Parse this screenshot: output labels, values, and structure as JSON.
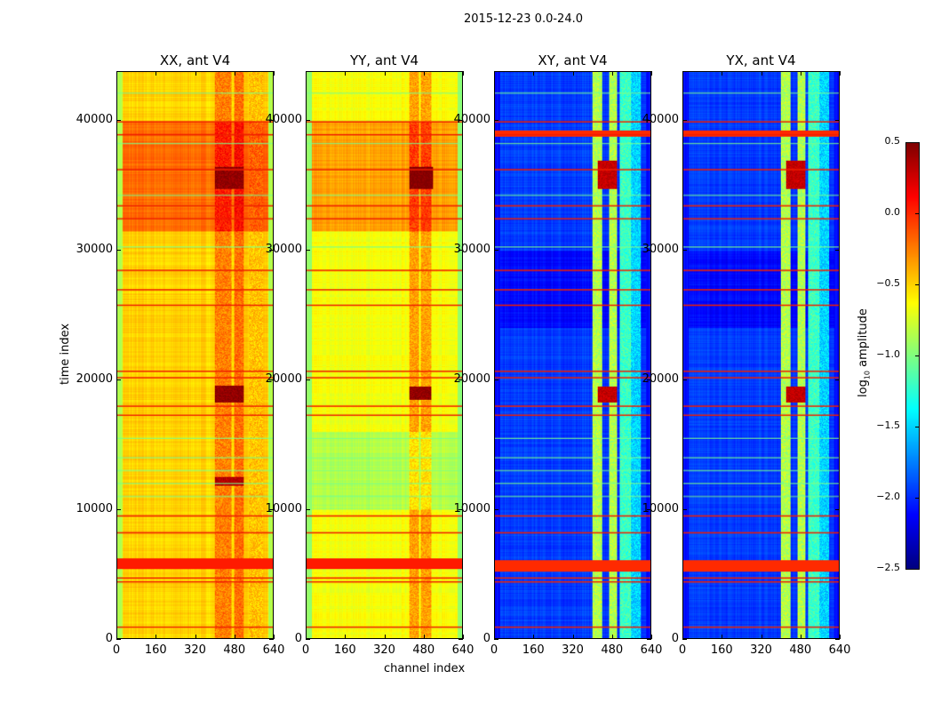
{
  "chart_data": {
    "type": "heatmap",
    "title": "2015-12-23 0.0-24.0",
    "xlabel": "channel index",
    "ylabel": "time index",
    "xlim": [
      0,
      640
    ],
    "ylim": [
      0,
      43800
    ],
    "xticks": [
      "0",
      "160",
      "320",
      "480",
      "640"
    ],
    "xtick_values": [
      0,
      160,
      320,
      480,
      640
    ],
    "yticks": [
      "0",
      "10000",
      "20000",
      "30000",
      "40000"
    ],
    "ytick_values": [
      0,
      10000,
      20000,
      30000,
      40000
    ],
    "colormap": "jet",
    "colorbar": {
      "label": "log10 amplitude",
      "label_main": "log",
      "label_sub": "10",
      "label_tail": " amplitude",
      "range": [
        -2.5,
        0.5
      ],
      "ticks": [
        "0.5",
        "0.0",
        "−0.5",
        "−1.0",
        "−1.5",
        "−2.0",
        "−2.5"
      ],
      "tick_values": [
        0.5,
        0.0,
        -0.5,
        -1.0,
        -1.5,
        -2.0,
        -2.5
      ]
    },
    "panels": [
      {
        "title": "XX, ant V4",
        "base": -0.5,
        "edge": -0.85,
        "time_bands": [
          [
            31500,
            40000,
            -0.2
          ],
          [
            5400,
            6200,
            0.05
          ]
        ],
        "channel_bands": [
          [
            400,
            470,
            0.25
          ],
          [
            480,
            520,
            0.3
          ],
          [
            540,
            600,
            0.05
          ]
        ],
        "hot": [
          [
            34800,
            36500,
            400,
            520,
            0.45
          ],
          [
            18300,
            19600,
            400,
            520,
            0.45
          ],
          [
            11800,
            12500,
            400,
            520,
            0.35
          ]
        ]
      },
      {
        "title": "YY, ant V4",
        "base": -0.65,
        "edge": -0.95,
        "time_bands": [
          [
            31500,
            40000,
            -0.35
          ],
          [
            5400,
            6200,
            0.05
          ],
          [
            10000,
            16000,
            -0.85
          ]
        ],
        "channel_bands": [
          [
            420,
            460,
            0.3
          ],
          [
            470,
            510,
            0.3
          ]
        ],
        "hot": [
          [
            34800,
            36500,
            420,
            520,
            0.5
          ],
          [
            18500,
            19500,
            420,
            510,
            0.45
          ]
        ]
      },
      {
        "title": "XY, ant V4",
        "base": -1.95,
        "edge": -2.1,
        "time_bands": [
          [
            5200,
            6100,
            0.0
          ],
          [
            38800,
            39300,
            0.0
          ],
          [
            24000,
            30000,
            -2.1
          ]
        ],
        "channel_bands": [
          [
            400,
            440,
            -0.85
          ],
          [
            470,
            500,
            -0.85
          ],
          [
            510,
            560,
            -1.2
          ],
          [
            560,
            600,
            -1.5
          ]
        ],
        "hot": [
          [
            34800,
            37000,
            420,
            500,
            0.3
          ],
          [
            18300,
            19500,
            420,
            500,
            0.3
          ]
        ]
      },
      {
        "title": "YX, ant V4",
        "base": -1.95,
        "edge": -2.1,
        "time_bands": [
          [
            5200,
            6100,
            0.0
          ],
          [
            38800,
            39300,
            0.0
          ],
          [
            24000,
            30000,
            -2.1
          ]
        ],
        "channel_bands": [
          [
            400,
            440,
            -0.85
          ],
          [
            470,
            500,
            -0.85
          ],
          [
            510,
            560,
            -1.2
          ],
          [
            560,
            600,
            -1.5
          ]
        ],
        "hot": [
          [
            34800,
            37000,
            420,
            500,
            0.3
          ],
          [
            18300,
            19500,
            420,
            500,
            0.3
          ]
        ]
      }
    ],
    "flag_lines_high": [
      900,
      4400,
      4700,
      8200,
      9500,
      17300,
      18000,
      20200,
      20700,
      25800,
      27000,
      28500,
      32500,
      33500,
      36300,
      39000,
      40000
    ],
    "flag_lines_low": [
      11000,
      12000,
      13000,
      14000,
      15500,
      30300,
      34300,
      38300,
      42200
    ]
  }
}
